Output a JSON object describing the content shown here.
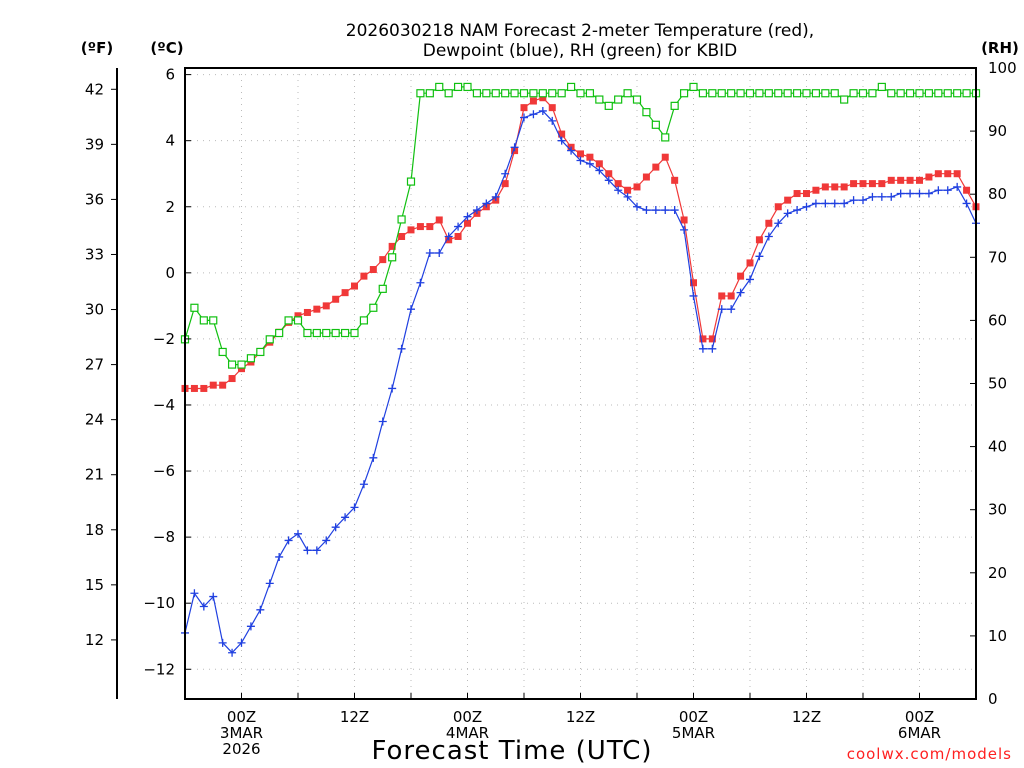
{
  "chart_data": {
    "type": "line",
    "title_line1": "2026030218 NAM Forecast 2-meter Temperature (red),",
    "title_line2": "Dewpoint (blue), RH (green) for KBID",
    "xlabel": "Forecast Time (UTC)",
    "credit": "coolwx.com/models",
    "units": {
      "fahrenheit": "(ºF)",
      "celsius": "(ºC)",
      "rh": "(RH)"
    },
    "x_start_hour": -6,
    "x_end_hour": 78,
    "ylim_c": [
      -12.9,
      6.2
    ],
    "ylim_rh": [
      0,
      100
    ],
    "y_ticks_c": [
      "6",
      "4",
      "2",
      "0",
      "−2",
      "−4",
      "−6",
      "−8",
      "−10",
      "−12"
    ],
    "y_ticks_c_values": [
      6,
      4,
      2,
      0,
      -2,
      -4,
      -6,
      -8,
      -10,
      -12
    ],
    "y_ticks_f": [
      "42",
      "39",
      "36",
      "33",
      "30",
      "27",
      "24",
      "21",
      "18",
      "15",
      "12"
    ],
    "y_ticks_f_values": [
      42,
      39,
      36,
      33,
      30,
      27,
      24,
      21,
      18,
      15,
      12
    ],
    "y_ticks_rh": [
      "100",
      "90",
      "80",
      "70",
      "60",
      "50",
      "40",
      "30",
      "20",
      "10",
      "0"
    ],
    "y_ticks_rh_values": [
      100,
      90,
      80,
      70,
      60,
      50,
      40,
      30,
      20,
      10,
      0
    ],
    "x_ticks": [
      {
        "hour": 0,
        "line1": "00Z",
        "line2": "3MAR",
        "line3": "2026"
      },
      {
        "hour": 12,
        "line1": "12Z",
        "line2": "",
        "line3": ""
      },
      {
        "hour": 24,
        "line1": "00Z",
        "line2": "4MAR",
        "line3": ""
      },
      {
        "hour": 36,
        "line1": "12Z",
        "line2": "",
        "line3": ""
      },
      {
        "hour": 48,
        "line1": "00Z",
        "line2": "5MAR",
        "line3": ""
      },
      {
        "hour": 60,
        "line1": "12Z",
        "line2": "",
        "line3": ""
      },
      {
        "hour": 72,
        "line1": "00Z",
        "line2": "6MAR",
        "line3": ""
      }
    ],
    "series": [
      {
        "name": "Temperature",
        "color": "#f03838",
        "marker": "filled-square",
        "axis": "celsius",
        "points": [
          [
            -6,
            -3.5
          ],
          [
            -5,
            -3.5
          ],
          [
            -4,
            -3.5
          ],
          [
            -3,
            -3.4
          ],
          [
            -2,
            -3.4
          ],
          [
            -1,
            -3.2
          ],
          [
            0,
            -2.9
          ],
          [
            1,
            -2.7
          ],
          [
            2,
            -2.4
          ],
          [
            3,
            -2.1
          ],
          [
            4,
            -1.8
          ],
          [
            5,
            -1.5
          ],
          [
            6,
            -1.3
          ],
          [
            7,
            -1.2
          ],
          [
            8,
            -1.1
          ],
          [
            9,
            -1.0
          ],
          [
            10,
            -0.8
          ],
          [
            11,
            -0.6
          ],
          [
            12,
            -0.4
          ],
          [
            13,
            -0.1
          ],
          [
            14,
            0.1
          ],
          [
            15,
            0.4
          ],
          [
            16,
            0.8
          ],
          [
            17,
            1.1
          ],
          [
            18,
            1.3
          ],
          [
            19,
            1.4
          ],
          [
            20,
            1.4
          ],
          [
            21,
            1.6
          ],
          [
            22,
            1.0
          ],
          [
            23,
            1.1
          ],
          [
            24,
            1.5
          ],
          [
            25,
            1.8
          ],
          [
            26,
            2.0
          ],
          [
            27,
            2.2
          ],
          [
            28,
            2.7
          ],
          [
            29,
            3.7
          ],
          [
            30,
            5.0
          ],
          [
            31,
            5.2
          ],
          [
            32,
            5.3
          ],
          [
            33,
            5.0
          ],
          [
            34,
            4.2
          ],
          [
            35,
            3.8
          ],
          [
            36,
            3.6
          ],
          [
            37,
            3.5
          ],
          [
            38,
            3.3
          ],
          [
            39,
            3.0
          ],
          [
            40,
            2.7
          ],
          [
            41,
            2.5
          ],
          [
            42,
            2.6
          ],
          [
            43,
            2.9
          ],
          [
            44,
            3.2
          ],
          [
            45,
            3.5
          ],
          [
            46,
            2.8
          ],
          [
            47,
            1.6
          ],
          [
            48,
            -0.3
          ],
          [
            49,
            -2.0
          ],
          [
            50,
            -2.0
          ],
          [
            51,
            -0.7
          ],
          [
            52,
            -0.7
          ],
          [
            53,
            -0.1
          ],
          [
            54,
            0.3
          ],
          [
            55,
            1.0
          ],
          [
            56,
            1.5
          ],
          [
            57,
            2.0
          ],
          [
            58,
            2.2
          ],
          [
            59,
            2.4
          ],
          [
            60,
            2.4
          ],
          [
            61,
            2.5
          ],
          [
            62,
            2.6
          ],
          [
            63,
            2.6
          ],
          [
            64,
            2.6
          ],
          [
            65,
            2.7
          ],
          [
            66,
            2.7
          ],
          [
            67,
            2.7
          ],
          [
            68,
            2.7
          ],
          [
            69,
            2.8
          ],
          [
            70,
            2.8
          ],
          [
            71,
            2.8
          ],
          [
            72,
            2.8
          ],
          [
            73,
            2.9
          ],
          [
            74,
            3.0
          ],
          [
            75,
            3.0
          ],
          [
            76,
            3.0
          ],
          [
            77,
            2.5
          ],
          [
            78,
            2.0
          ],
          [
            79,
            1.7
          ],
          [
            80,
            1.7
          ],
          [
            81,
            1.7
          ]
        ]
      },
      {
        "name": "Dewpoint",
        "color": "#2040e0",
        "marker": "plus",
        "axis": "celsius",
        "points": [
          [
            -6,
            -10.9
          ],
          [
            -5,
            -9.7
          ],
          [
            -4,
            -10.1
          ],
          [
            -3,
            -9.8
          ],
          [
            -2,
            -11.2
          ],
          [
            -1,
            -11.5
          ],
          [
            0,
            -11.2
          ],
          [
            1,
            -10.7
          ],
          [
            2,
            -10.2
          ],
          [
            3,
            -9.4
          ],
          [
            4,
            -8.6
          ],
          [
            5,
            -8.1
          ],
          [
            6,
            -7.9
          ],
          [
            7,
            -8.4
          ],
          [
            8,
            -8.4
          ],
          [
            9,
            -8.1
          ],
          [
            10,
            -7.7
          ],
          [
            11,
            -7.4
          ],
          [
            12,
            -7.1
          ],
          [
            13,
            -6.4
          ],
          [
            14,
            -5.6
          ],
          [
            15,
            -4.5
          ],
          [
            16,
            -3.5
          ],
          [
            17,
            -2.3
          ],
          [
            18,
            -1.1
          ],
          [
            19,
            -0.3
          ],
          [
            20,
            0.6
          ],
          [
            21,
            0.6
          ],
          [
            22,
            1.1
          ],
          [
            23,
            1.4
          ],
          [
            24,
            1.7
          ],
          [
            25,
            1.9
          ],
          [
            26,
            2.1
          ],
          [
            27,
            2.3
          ],
          [
            28,
            3.0
          ],
          [
            29,
            3.8
          ],
          [
            30,
            4.7
          ],
          [
            31,
            4.8
          ],
          [
            32,
            4.9
          ],
          [
            33,
            4.6
          ],
          [
            34,
            4.0
          ],
          [
            35,
            3.7
          ],
          [
            36,
            3.4
          ],
          [
            37,
            3.3
          ],
          [
            38,
            3.1
          ],
          [
            39,
            2.8
          ],
          [
            40,
            2.5
          ],
          [
            41,
            2.3
          ],
          [
            42,
            2.0
          ],
          [
            43,
            1.9
          ],
          [
            44,
            1.9
          ],
          [
            45,
            1.9
          ],
          [
            46,
            1.9
          ],
          [
            47,
            1.3
          ],
          [
            48,
            -0.7
          ],
          [
            49,
            -2.3
          ],
          [
            50,
            -2.3
          ],
          [
            51,
            -1.1
          ],
          [
            52,
            -1.1
          ],
          [
            53,
            -0.6
          ],
          [
            54,
            -0.2
          ],
          [
            55,
            0.5
          ],
          [
            56,
            1.1
          ],
          [
            57,
            1.5
          ],
          [
            58,
            1.8
          ],
          [
            59,
            1.9
          ],
          [
            60,
            2.0
          ],
          [
            61,
            2.1
          ],
          [
            62,
            2.1
          ],
          [
            63,
            2.1
          ],
          [
            64,
            2.1
          ],
          [
            65,
            2.2
          ],
          [
            66,
            2.2
          ],
          [
            67,
            2.3
          ],
          [
            68,
            2.3
          ],
          [
            69,
            2.3
          ],
          [
            70,
            2.4
          ],
          [
            71,
            2.4
          ],
          [
            72,
            2.4
          ],
          [
            73,
            2.4
          ],
          [
            74,
            2.5
          ],
          [
            75,
            2.5
          ],
          [
            76,
            2.6
          ],
          [
            77,
            2.1
          ],
          [
            78,
            1.5
          ],
          [
            79,
            1.2
          ],
          [
            80,
            1.2
          ],
          [
            81,
            1.3
          ]
        ]
      },
      {
        "name": "RH",
        "color": "#10c010",
        "marker": "open-square",
        "axis": "rh",
        "points": [
          [
            -6,
            57
          ],
          [
            -5,
            62
          ],
          [
            -4,
            60
          ],
          [
            -3,
            60
          ],
          [
            -2,
            55
          ],
          [
            -1,
            53
          ],
          [
            0,
            53
          ],
          [
            1,
            54
          ],
          [
            2,
            55
          ],
          [
            3,
            57
          ],
          [
            4,
            58
          ],
          [
            5,
            60
          ],
          [
            6,
            60
          ],
          [
            7,
            58
          ],
          [
            8,
            58
          ],
          [
            9,
            58
          ],
          [
            10,
            58
          ],
          [
            11,
            58
          ],
          [
            12,
            58
          ],
          [
            13,
            60
          ],
          [
            14,
            62
          ],
          [
            15,
            65
          ],
          [
            16,
            70
          ],
          [
            17,
            76
          ],
          [
            18,
            82
          ],
          [
            19,
            96
          ],
          [
            20,
            96
          ],
          [
            21,
            97
          ],
          [
            22,
            96
          ],
          [
            23,
            97
          ],
          [
            24,
            97
          ],
          [
            25,
            96
          ],
          [
            26,
            96
          ],
          [
            27,
            96
          ],
          [
            28,
            96
          ],
          [
            29,
            96
          ],
          [
            30,
            96
          ],
          [
            31,
            96
          ],
          [
            32,
            96
          ],
          [
            33,
            96
          ],
          [
            34,
            96
          ],
          [
            35,
            97
          ],
          [
            36,
            96
          ],
          [
            37,
            96
          ],
          [
            38,
            95
          ],
          [
            39,
            94
          ],
          [
            40,
            95
          ],
          [
            41,
            96
          ],
          [
            42,
            95
          ],
          [
            43,
            93
          ],
          [
            44,
            91
          ],
          [
            45,
            89
          ],
          [
            46,
            94
          ],
          [
            47,
            96
          ],
          [
            48,
            97
          ],
          [
            49,
            96
          ],
          [
            50,
            96
          ],
          [
            51,
            96
          ],
          [
            52,
            96
          ],
          [
            53,
            96
          ],
          [
            54,
            96
          ],
          [
            55,
            96
          ],
          [
            56,
            96
          ],
          [
            57,
            96
          ],
          [
            58,
            96
          ],
          [
            59,
            96
          ],
          [
            60,
            96
          ],
          [
            61,
            96
          ],
          [
            62,
            96
          ],
          [
            63,
            96
          ],
          [
            64,
            95
          ],
          [
            65,
            96
          ],
          [
            66,
            96
          ],
          [
            67,
            96
          ],
          [
            68,
            97
          ],
          [
            69,
            96
          ],
          [
            70,
            96
          ],
          [
            71,
            96
          ],
          [
            72,
            96
          ],
          [
            73,
            96
          ],
          [
            74,
            96
          ],
          [
            75,
            96
          ],
          [
            76,
            96
          ],
          [
            77,
            96
          ],
          [
            78,
            96
          ],
          [
            79,
            96
          ],
          [
            80,
            96
          ],
          [
            81,
            97
          ]
        ]
      }
    ]
  }
}
